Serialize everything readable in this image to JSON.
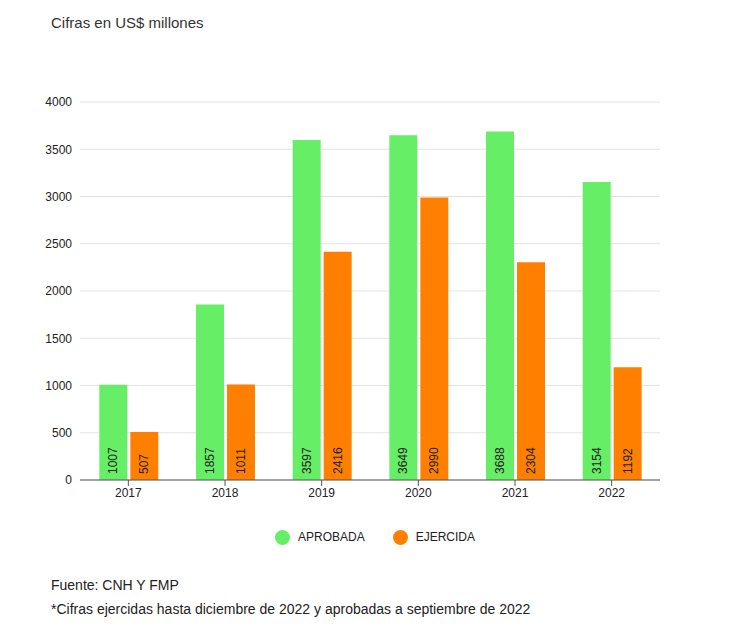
{
  "chart_data": {
    "type": "bar",
    "title": "Cifras en US$ millones",
    "categories": [
      "2017",
      "2018",
      "2019",
      "2020",
      "2021",
      "2022"
    ],
    "series": [
      {
        "name": "APROBADA",
        "color": "#66ee66",
        "values": [
          1007,
          1857,
          3597,
          3649,
          3688,
          3154
        ]
      },
      {
        "name": "EJERCIDA",
        "color": "#ff8000",
        "values": [
          507,
          1011,
          2416,
          2990,
          2304,
          1192
        ]
      }
    ],
    "ylim": [
      0,
      4000
    ],
    "yticks": [
      0,
      500,
      1000,
      1500,
      2000,
      2500,
      3000,
      3500,
      4000
    ],
    "grid": true,
    "data_labels": true,
    "legend": "bottom",
    "annotations": [
      "Fuente: CNH Y FMP",
      "*Cifras ejercidas hasta diciembre de 2022 y aprobadas a septiembre de 2022"
    ]
  }
}
